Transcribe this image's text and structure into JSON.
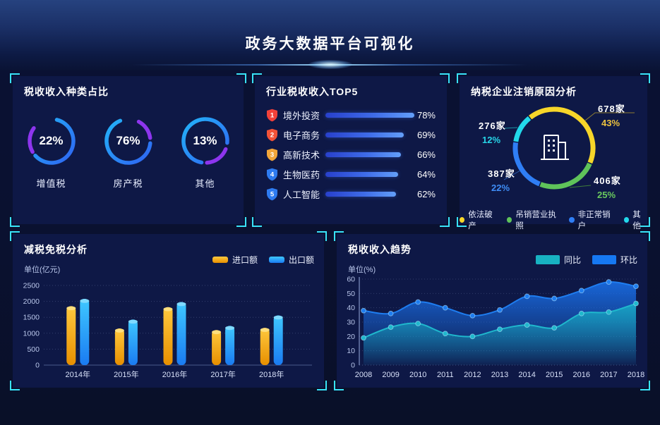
{
  "page_title": "政务大数据平台可视化",
  "panels": {
    "tax_type": {
      "title": "税收收入种类占比"
    },
    "industry_top5": {
      "title": "行业税收收入TOP5"
    },
    "cancel_reason": {
      "title": "纳税企业注销原因分析"
    },
    "tax_reduction": {
      "title": "减税免税分析",
      "unit": "单位(亿元)"
    },
    "tax_trend": {
      "title": "税收收入趋势",
      "unit": "单位(%)"
    }
  },
  "colors": {
    "bracket": "#39e3f8",
    "ring_blue": "#2f7bf3",
    "ring_purple": "#8d35ee",
    "donut_yellow": "#f7d629",
    "donut_green": "#5fc35a",
    "donut_blue": "#2f7ef5",
    "donut_cyan": "#22d8ea"
  },
  "chart_data": [
    {
      "id": "tax_type",
      "type": "donut-set",
      "title": "税收收入种类占比",
      "items": [
        {
          "label": "增值税",
          "value_pct": "22%"
        },
        {
          "label": "房产税",
          "value_pct": "76%"
        },
        {
          "label": "其他",
          "value_pct": "13%"
        }
      ]
    },
    {
      "id": "industry_top5",
      "type": "bar-list",
      "title": "行业税收收入TOP5",
      "items": [
        {
          "rank": "1",
          "label": "境外投资",
          "value": 78,
          "pct_text": "78%",
          "badge_color": "#f2413a"
        },
        {
          "rank": "2",
          "label": "电子商务",
          "value": 69,
          "pct_text": "69%",
          "badge_color": "#f25238"
        },
        {
          "rank": "3",
          "label": "高新技术",
          "value": 66,
          "pct_text": "66%",
          "badge_color": "#f2a63a"
        },
        {
          "rank": "4",
          "label": "生物医药",
          "value": 64,
          "pct_text": "64%",
          "badge_color": "#2e7bf0"
        },
        {
          "rank": "5",
          "label": "人工智能",
          "value": 62,
          "pct_text": "62%",
          "badge_color": "#2e7bf0"
        }
      ],
      "max_value": 78
    },
    {
      "id": "cancel_reason",
      "type": "donut",
      "title": "纳税企业注销原因分析",
      "segments": [
        {
          "label": "依法破产",
          "count": "678家",
          "pct": 43,
          "pct_text": "43%",
          "color": "#f7d629",
          "pct_color": "#ecc23f"
        },
        {
          "label": "吊销营业执照",
          "count": "406家",
          "pct": 25,
          "pct_text": "25%",
          "color": "#5fc35a",
          "pct_color": "#69c95e"
        },
        {
          "label": "非正常销户",
          "count": "387家",
          "pct": 22,
          "pct_text": "22%",
          "color": "#2f7ef5",
          "pct_color": "#3f8df6"
        },
        {
          "label": "其他",
          "count": "276家",
          "pct": 12,
          "pct_text": "12%",
          "color": "#22d8ea",
          "pct_color": "#27d5e8"
        }
      ],
      "legend": [
        "依法破产",
        "吊销营业执照",
        "非正常销户",
        "其他"
      ]
    },
    {
      "id": "tax_reduction",
      "type": "bar",
      "title": "减税免税分析",
      "ylabel": "单位(亿元)",
      "categories": [
        "2014年",
        "2015年",
        "2016年",
        "2017年",
        "2018年"
      ],
      "series": [
        {
          "name": "进口额",
          "color_top": "#ffc93e",
          "color_bottom": "#e78f00",
          "cap_color": "#ffdf7d",
          "values": [
            1850,
            1150,
            1820,
            1100,
            1170
          ]
        },
        {
          "name": "出口额",
          "color_top": "#3fc8ff",
          "color_bottom": "#1a7bf2",
          "cap_color": "#7fdaff",
          "values": [
            2080,
            1430,
            1980,
            1230,
            1560
          ]
        }
      ],
      "ylim": [
        0,
        2500
      ],
      "yticks": [
        0,
        500,
        1000,
        1500,
        2000,
        2500
      ],
      "grid": "dotted",
      "legend_position": "top-right"
    },
    {
      "id": "tax_trend",
      "type": "area",
      "title": "税收收入趋势",
      "ylabel": "单位(%)",
      "x": [
        "2008",
        "2009",
        "2010",
        "2011",
        "2012",
        "2013",
        "2014",
        "2015",
        "2016",
        "2017",
        "2018"
      ],
      "series": [
        {
          "name": "同比",
          "color": "#1fb8cd",
          "swatch": "#18b2c2",
          "values": [
            19,
            26.5,
            29,
            22,
            20,
            25,
            28,
            26,
            36,
            37,
            43
          ]
        },
        {
          "name": "环比",
          "color": "#1e7df0",
          "swatch": "#1678f2",
          "values": [
            38,
            36,
            44,
            40,
            34.5,
            38.5,
            48,
            46.5,
            52,
            58,
            55
          ]
        }
      ],
      "ylim": [
        0,
        60
      ],
      "yticks": [
        0,
        10,
        20,
        30,
        40,
        50,
        60
      ],
      "grid": "dotted",
      "legend_position": "top-right"
    }
  ]
}
